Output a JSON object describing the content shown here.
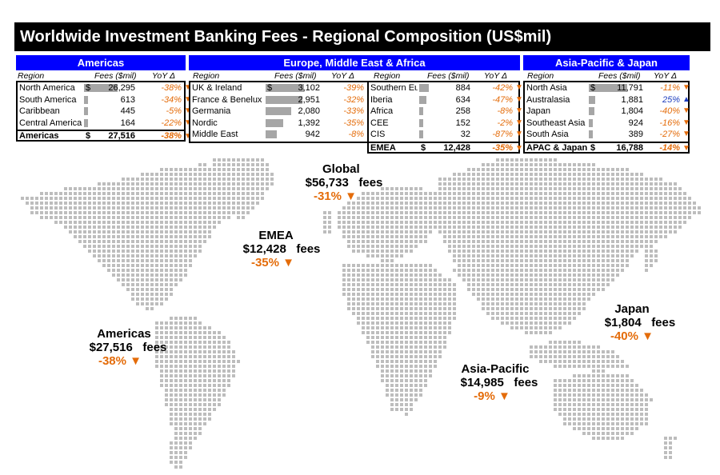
{
  "title": "Worldwide Investment Banking Fees - Regional Composition (US$mil)",
  "column_headers": {
    "region": "Region",
    "fees": "Fees ($mil)",
    "yoy": "YoY Δ"
  },
  "colors": {
    "header_blue": "#0000ff",
    "negative": "#e46c0a",
    "positive": "#1f3fbf",
    "bar": "#a6a6a6",
    "map_dot": "#bdbdbd"
  },
  "icons": {
    "down": "down-triangle-icon",
    "up": "up-triangle-icon"
  },
  "panels": {
    "americas": {
      "header": "Americas",
      "rows": [
        {
          "region": "North America",
          "fees": "26,295",
          "dollar": "$",
          "yoy": "-38%",
          "dir": "down",
          "share": 0.96
        },
        {
          "region": "South America",
          "fees": "613",
          "dollar": "",
          "yoy": "-34%",
          "dir": "down",
          "share": 0.05
        },
        {
          "region": "Caribbean",
          "fees": "445",
          "dollar": "",
          "yoy": "-5%",
          "dir": "down",
          "share": 0.04
        },
        {
          "region": "Central America",
          "fees": "164",
          "dollar": "",
          "yoy": "-22%",
          "dir": "down",
          "share": 0.03
        }
      ],
      "total": {
        "label": "Americas",
        "dollar": "$",
        "fees": "27,516",
        "yoy": "-38%",
        "dir": "down"
      }
    },
    "emea_left": {
      "rows": [
        {
          "region": "UK & Ireland",
          "fees": "3,102",
          "dollar": "$",
          "yoy": "-39%",
          "dir": "down",
          "share": 1.0
        },
        {
          "region": "France & Benelux",
          "fees": "2,951",
          "dollar": "",
          "yoy": "-32%",
          "dir": "down",
          "share": 0.95
        },
        {
          "region": "Germania",
          "fees": "2,080",
          "dollar": "",
          "yoy": "-33%",
          "dir": "down",
          "share": 0.67
        },
        {
          "region": "Nordic",
          "fees": "1,392",
          "dollar": "",
          "yoy": "-35%",
          "dir": "down",
          "share": 0.45
        },
        {
          "region": "Middle East",
          "fees": "942",
          "dollar": "",
          "yoy": "-8%",
          "dir": "down",
          "share": 0.3
        }
      ]
    },
    "emea_header": "Europe, Middle East & Africa",
    "emea_right": {
      "rows": [
        {
          "region": "Southern Eu",
          "fees": "884",
          "dollar": "",
          "yoy": "-42%",
          "dir": "down",
          "share": 0.28
        },
        {
          "region": "Iberia",
          "fees": "634",
          "dollar": "",
          "yoy": "-47%",
          "dir": "down",
          "share": 0.2
        },
        {
          "region": "Africa",
          "fees": "258",
          "dollar": "",
          "yoy": "-8%",
          "dir": "down",
          "share": 0.08
        },
        {
          "region": "CEE",
          "fees": "152",
          "dollar": "",
          "yoy": "-2%",
          "dir": "down",
          "share": 0.05
        },
        {
          "region": "CIS",
          "fees": "32",
          "dollar": "",
          "yoy": "-87%",
          "dir": "down",
          "share": 0.01
        }
      ],
      "total": {
        "label": "EMEA",
        "dollar": "$",
        "fees": "12,428",
        "yoy": "-35%",
        "dir": "down"
      }
    },
    "apac": {
      "header": "Asia-Pacific & Japan",
      "rows": [
        {
          "region": "North Asia",
          "fees": "11,791",
          "dollar": "$",
          "yoy": "-11%",
          "dir": "down",
          "share": 1.0
        },
        {
          "region": "Australasia",
          "fees": "1,881",
          "dollar": "",
          "yoy": "25%",
          "dir": "up",
          "share": 0.16
        },
        {
          "region": "Japan",
          "fees": "1,804",
          "dollar": "",
          "yoy": "-40%",
          "dir": "down",
          "share": 0.15
        },
        {
          "region": "Southeast Asia",
          "fees": "924",
          "dollar": "",
          "yoy": "-16%",
          "dir": "down",
          "share": 0.08
        },
        {
          "region": "South Asia",
          "fees": "389",
          "dollar": "",
          "yoy": "-27%",
          "dir": "down",
          "share": 0.03
        }
      ],
      "total": {
        "label": "APAC & Japan",
        "dollar": "$",
        "fees": "16,788",
        "yoy": "-14%",
        "dir": "down"
      }
    }
  },
  "map_labels": {
    "global": {
      "name": "Global",
      "amount": "$56,733",
      "unit": "fees",
      "pct": "-31%"
    },
    "emea": {
      "name": "EMEA",
      "amount": "$12,428",
      "unit": "fees",
      "pct": "-35%"
    },
    "americas": {
      "name": "Americas",
      "amount": "$27,516",
      "unit": "fees",
      "pct": "-38%"
    },
    "asia_pacific": {
      "name": "Asia-Pacific",
      "amount": "$14,985",
      "unit": "fees",
      "pct": "-9%"
    },
    "japan": {
      "name": "Japan",
      "amount": "$1,804",
      "unit": "fees",
      "pct": "-40%"
    }
  }
}
